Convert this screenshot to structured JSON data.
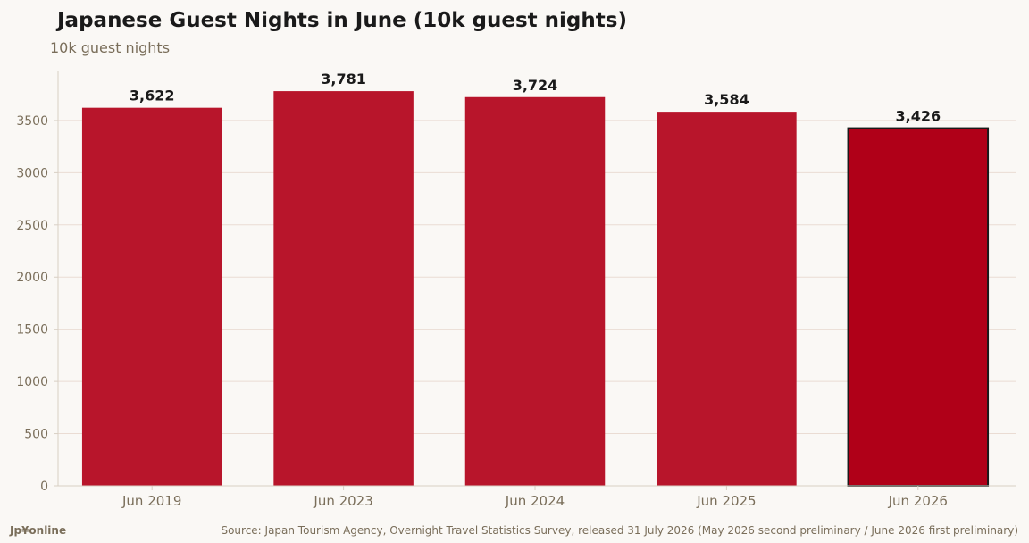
{
  "header": {
    "title": "Japanese Guest Nights in June (10k guest nights)",
    "subtitle": "10k guest nights"
  },
  "footer": {
    "brand": "Jp¥online",
    "source": "Source: Japan Tourism Agency, Overnight Travel Statistics Survey, released 31 July 2026 (May 2026 second preliminary / June 2026 first preliminary)"
  },
  "colors": {
    "bar": "#b8152b",
    "bar_highlight": "#b00018",
    "highlight_outline": "#1a1a1a",
    "grid": "#eadcd3",
    "axis": "#d8cfc4",
    "tick_text": "#7a6e5a",
    "label_text": "#1a1a1a"
  },
  "chart_data": {
    "type": "bar",
    "title": "Japanese Guest Nights in June (10k guest nights)",
    "ylabel": "10k guest nights",
    "xlabel": "",
    "categories": [
      "Jun 2019",
      "Jun 2023",
      "Jun 2024",
      "Jun 2025",
      "Jun 2026"
    ],
    "values": [
      3622,
      3781,
      3724,
      3584,
      3426
    ],
    "value_labels": [
      "3,622",
      "3,781",
      "3,724",
      "3,584",
      "3,426"
    ],
    "highlight_index": 4,
    "ylim": [
      0,
      3970
    ],
    "yticks": [
      0,
      500,
      1000,
      1500,
      2000,
      2500,
      3000,
      3500
    ],
    "grid": true,
    "legend": "none"
  }
}
